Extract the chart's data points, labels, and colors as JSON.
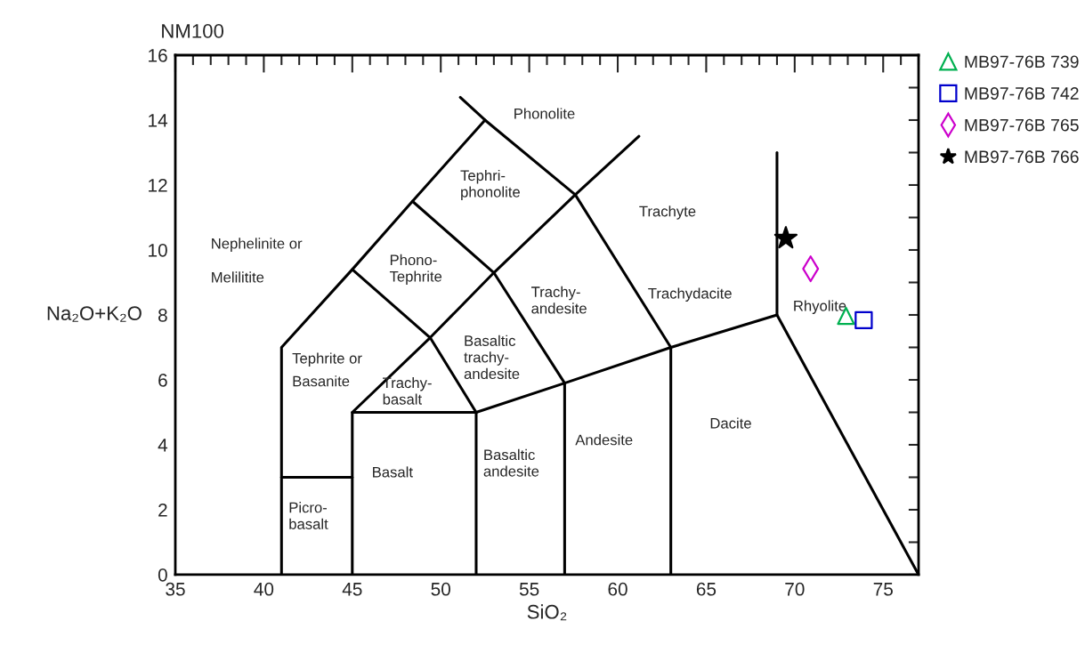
{
  "chart_data": {
    "type": "scatter",
    "title": "NM100",
    "xlabel": "SiO₂",
    "ylabel": "Na₂O+K₂O",
    "xlim": [
      35,
      77
    ],
    "ylim": [
      0,
      16
    ],
    "xticks": [
      35,
      40,
      45,
      50,
      55,
      60,
      65,
      70,
      75
    ],
    "yticks": [
      0,
      2,
      4,
      6,
      8,
      10,
      12,
      14,
      16
    ],
    "grid": false,
    "legend": "top right",
    "series": [
      {
        "type": "line",
        "color": "#000000",
        "line_style": "solid",
        "marker": "none",
        "x": [
          41,
          41,
          45,
          48.4,
          52.5,
          57.6,
          63,
          63
        ],
        "values": [
          0,
          7,
          9.4,
          11.5,
          14,
          11.7,
          7,
          0
        ]
      },
      {
        "type": "line",
        "color": "#000000",
        "line_style": "solid",
        "marker": "none",
        "x": [
          51.1,
          52.5
        ],
        "values": [
          14.7,
          14
        ]
      },
      {
        "type": "line",
        "color": "#000000",
        "line_style": "solid",
        "marker": "none",
        "x": [
          41,
          45
        ],
        "values": [
          3,
          3
        ]
      },
      {
        "type": "line",
        "color": "#000000",
        "line_style": "solid",
        "marker": "none",
        "x": [
          45,
          45,
          52,
          52
        ],
        "values": [
          0,
          5,
          5,
          0
        ]
      },
      {
        "type": "line",
        "color": "#000000",
        "line_style": "solid",
        "marker": "none",
        "x": [
          45,
          49.4,
          53,
          57.6,
          61.2
        ],
        "values": [
          5,
          7.3,
          9.3,
          11.7,
          13.5
        ]
      },
      {
        "type": "line",
        "color": "#000000",
        "line_style": "solid",
        "marker": "none",
        "x": [
          52,
          57,
          63,
          69,
          77
        ],
        "values": [
          5,
          5.9,
          7,
          8,
          0
        ]
      },
      {
        "type": "line",
        "color": "#000000",
        "line_style": "solid",
        "marker": "none",
        "x": [
          57,
          57,
          53,
          48.4
        ],
        "values": [
          0,
          5.9,
          9.3,
          11.5
        ]
      },
      {
        "type": "line",
        "color": "#000000",
        "line_style": "solid",
        "marker": "none",
        "x": [
          52,
          49.4,
          45
        ],
        "values": [
          5,
          7.3,
          9.4
        ]
      },
      {
        "type": "line",
        "color": "#000000",
        "line_style": "solid",
        "marker": "none",
        "x": [
          69,
          69
        ],
        "values": [
          8,
          13
        ]
      },
      {
        "name": "MB97-76B 739",
        "color": "#00b050",
        "marker": "triangle",
        "x": [
          72.9
        ],
        "values": [
          7.97
        ]
      },
      {
        "name": "MB97-76B 742",
        "color": "#0000cc",
        "marker": "square",
        "x": [
          73.9
        ],
        "values": [
          7.84
        ]
      },
      {
        "name": "MB97-76B 765",
        "color": "#cc00cc",
        "marker": "diamond",
        "x": [
          70.9
        ],
        "values": [
          9.42
        ]
      },
      {
        "name": "MB97-76B 766",
        "color": "#000000",
        "marker": "star",
        "x": [
          69.5
        ],
        "values": [
          10.36
        ]
      }
    ],
    "annotations": [
      "Phonolite",
      "Tephri-\nphonolite",
      "Trachyte",
      "Nephelinite or",
      "Melilitite",
      "Phono-\nTephrite",
      "Trachy-\nandesite",
      "Trachydacite",
      "Rhyolite",
      "Basaltic\ntrachy-\nandesite",
      "Tephrite or",
      "Basanite",
      "Trachy-\nbasalt",
      "Andesite",
      "Dacite",
      "Basaltic\nandesite",
      "Basalt",
      "Picro-\nbasalt"
    ]
  }
}
